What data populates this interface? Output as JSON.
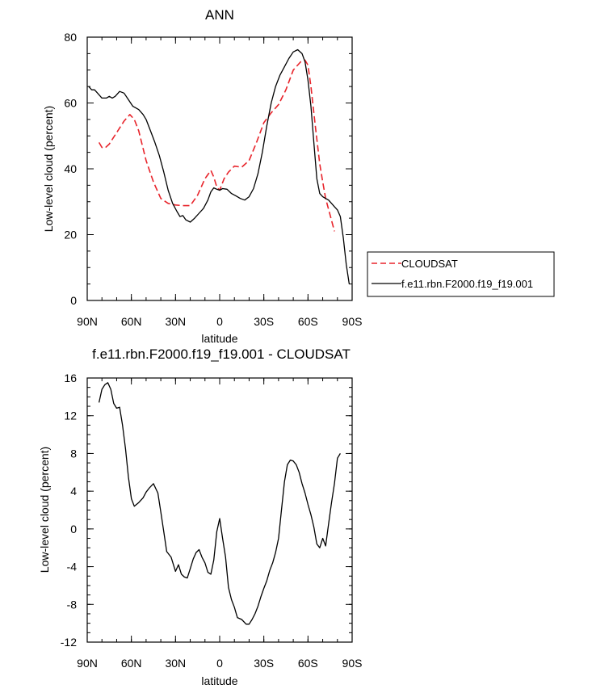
{
  "chart_data": [
    {
      "type": "line",
      "title": "ANN",
      "xlabel": "latitude",
      "ylabel": "Low-level cloud (percent)",
      "xlim": [
        90,
        -90
      ],
      "ylim": [
        0,
        80
      ],
      "x_ticks": [
        90,
        60,
        30,
        0,
        -30,
        -60,
        -90
      ],
      "x_tick_labels": [
        "90N",
        "60N",
        "30N",
        "0",
        "30S",
        "60S",
        "90S"
      ],
      "y_ticks": [
        0,
        20,
        40,
        60,
        80
      ],
      "y_tick_labels": [
        "0",
        "20",
        "40",
        "60",
        "80"
      ],
      "legend_position": "right",
      "series": [
        {
          "name": "CLOUDSAT",
          "style": "dashed",
          "color": "#e8242b",
          "x": [
            82,
            80,
            78,
            75,
            70,
            65,
            61,
            58,
            55,
            50,
            45,
            40,
            35,
            30,
            25,
            20,
            15,
            10,
            6,
            4,
            2,
            0,
            -3,
            -6,
            -10,
            -15,
            -20,
            -25,
            -30,
            -35,
            -40,
            -45,
            -50,
            -55,
            -58,
            -60,
            -62,
            -65,
            -68,
            -70,
            -72,
            -75,
            -78
          ],
          "y": [
            48,
            46.5,
            46.3,
            47.5,
            51,
            54.5,
            56.5,
            55,
            51.5,
            42.5,
            36,
            31,
            29.5,
            29,
            28.8,
            28.8,
            32,
            37,
            39.5,
            37.5,
            34.5,
            33.5,
            37,
            39,
            40.8,
            40.5,
            42.5,
            48,
            54,
            57,
            59.5,
            64,
            70,
            72.5,
            73,
            71.5,
            65,
            53,
            41.5,
            36,
            31,
            26,
            21
          ]
        },
        {
          "name": "f.e11.rbn.F2000.f19_f19.001",
          "style": "solid",
          "color": "#000000",
          "x": [
            89,
            87,
            85,
            83,
            80,
            77,
            75,
            73,
            71,
            68,
            65,
            62,
            59,
            57,
            55,
            52,
            50,
            47,
            44,
            41,
            38,
            35,
            32,
            29,
            27,
            25,
            23,
            20,
            17,
            14,
            11,
            8,
            6,
            4,
            2,
            0,
            -2,
            -5,
            -8,
            -11,
            -14,
            -17,
            -20,
            -23,
            -26,
            -29,
            -32,
            -35,
            -38,
            -41,
            -44,
            -47,
            -50,
            -53,
            -56,
            -58,
            -60,
            -62,
            -64,
            -66,
            -68,
            -70,
            -72,
            -74,
            -76,
            -78,
            -80,
            -82,
            -84,
            -86,
            -88
          ],
          "y": [
            65,
            64,
            64,
            63,
            61.5,
            61.5,
            62,
            61.5,
            62,
            63.5,
            63,
            61,
            59,
            58.5,
            58,
            56.5,
            55,
            51.5,
            48,
            44,
            39,
            33.5,
            29.5,
            27,
            25.5,
            25.8,
            24.5,
            23.8,
            25,
            26.5,
            28,
            30.5,
            33,
            34.2,
            33.8,
            33.5,
            34,
            33.8,
            32.5,
            31.8,
            31,
            30.5,
            31.5,
            34,
            38.5,
            45,
            53,
            60,
            65,
            68.5,
            71,
            73.5,
            75.5,
            76.2,
            75,
            72.5,
            67,
            59,
            48,
            37,
            32.5,
            31.5,
            31,
            30.5,
            29.5,
            28.5,
            27.5,
            25.5,
            19,
            11,
            5
          ]
        }
      ]
    },
    {
      "type": "line",
      "title": "f.e11.rbn.F2000.f19_f19.001 - CLOUDSAT",
      "xlabel": "latitude",
      "ylabel": "Low-level cloud (percent)",
      "xlim": [
        90,
        -90
      ],
      "ylim": [
        -12,
        16
      ],
      "x_ticks": [
        90,
        60,
        30,
        0,
        -30,
        -60,
        -90
      ],
      "x_tick_labels": [
        "90N",
        "60N",
        "30N",
        "0",
        "30S",
        "60S",
        "90S"
      ],
      "y_ticks": [
        -12,
        -8,
        -4,
        0,
        4,
        8,
        12,
        16
      ],
      "y_tick_labels": [
        "-12",
        "-8",
        "-4",
        "0",
        "4",
        "8",
        "12",
        "16"
      ],
      "series": [
        {
          "style": "solid",
          "color": "#000000",
          "x": [
            82,
            80,
            78,
            76,
            74,
            72,
            70,
            68,
            66,
            64,
            62,
            60,
            58,
            55,
            52,
            50,
            48,
            45,
            42,
            40,
            38,
            36,
            33,
            30,
            28,
            26,
            24,
            22,
            20,
            18,
            16,
            14,
            12,
            10,
            8,
            6,
            4,
            2,
            0,
            -2,
            -4,
            -6,
            -8,
            -10,
            -12,
            -15,
            -18,
            -20,
            -22,
            -24,
            -26,
            -28,
            -30,
            -32,
            -34,
            -36,
            -38,
            -40,
            -42,
            -44,
            -46,
            -48,
            -50,
            -52,
            -54,
            -56,
            -58,
            -60,
            -62,
            -64,
            -66,
            -68,
            -70,
            -72,
            -74,
            -76,
            -78,
            -80,
            -82
          ],
          "y": [
            13.4,
            14.8,
            15.3,
            15.5,
            14.8,
            13.3,
            12.8,
            12.9,
            11,
            8.5,
            5.5,
            3.2,
            2.4,
            2.8,
            3.3,
            3.9,
            4.3,
            4.8,
            3.8,
            1.8,
            -0.3,
            -2.4,
            -3,
            -4.5,
            -3.8,
            -4.8,
            -5.1,
            -5.2,
            -4.2,
            -3.2,
            -2.5,
            -2.2,
            -3,
            -3.6,
            -4.6,
            -4.8,
            -3.3,
            -0.3,
            1.1,
            -1,
            -3,
            -6.2,
            -7.5,
            -8.3,
            -9.4,
            -9.6,
            -10.1,
            -10.1,
            -9.6,
            -9,
            -8.2,
            -7.2,
            -6.3,
            -5.5,
            -4.4,
            -3.6,
            -2.5,
            -1,
            2,
            5,
            6.8,
            7.3,
            7.2,
            6.8,
            6,
            4.8,
            3.8,
            2.6,
            1.5,
            0.2,
            -1.6,
            -2,
            -1,
            -1.8,
            0.5,
            2.8,
            4.8,
            7.5,
            8
          ]
        }
      ]
    }
  ]
}
